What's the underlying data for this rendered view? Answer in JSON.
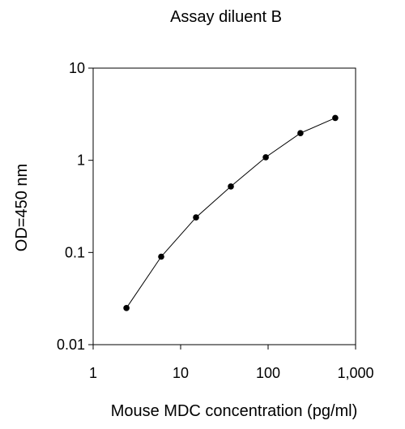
{
  "chart_data": {
    "type": "line",
    "title": "Assay diluent B",
    "xlabel": "Mouse MDC concentration (pg/ml)",
    "ylabel": "OD=450 nm",
    "x_scale": "log",
    "y_scale": "log",
    "xlim": [
      1,
      1000
    ],
    "ylim": [
      0.01,
      10
    ],
    "x_ticks": [
      {
        "value": 1,
        "label": "1"
      },
      {
        "value": 10,
        "label": "10"
      },
      {
        "value": 100,
        "label": "100"
      },
      {
        "value": 1000,
        "label": "1,000"
      }
    ],
    "y_ticks": [
      {
        "value": 0.01,
        "label": "0.01"
      },
      {
        "value": 0.1,
        "label": "0.1"
      },
      {
        "value": 1,
        "label": "1"
      },
      {
        "value": 10,
        "label": "10"
      }
    ],
    "grid": false,
    "series": [
      {
        "color": "#000000",
        "x": [
          2.4,
          6,
          15,
          37.5,
          94,
          234,
          586
        ],
        "y": [
          0.025,
          0.09,
          0.24,
          0.52,
          1.08,
          1.97,
          2.88
        ]
      }
    ]
  }
}
